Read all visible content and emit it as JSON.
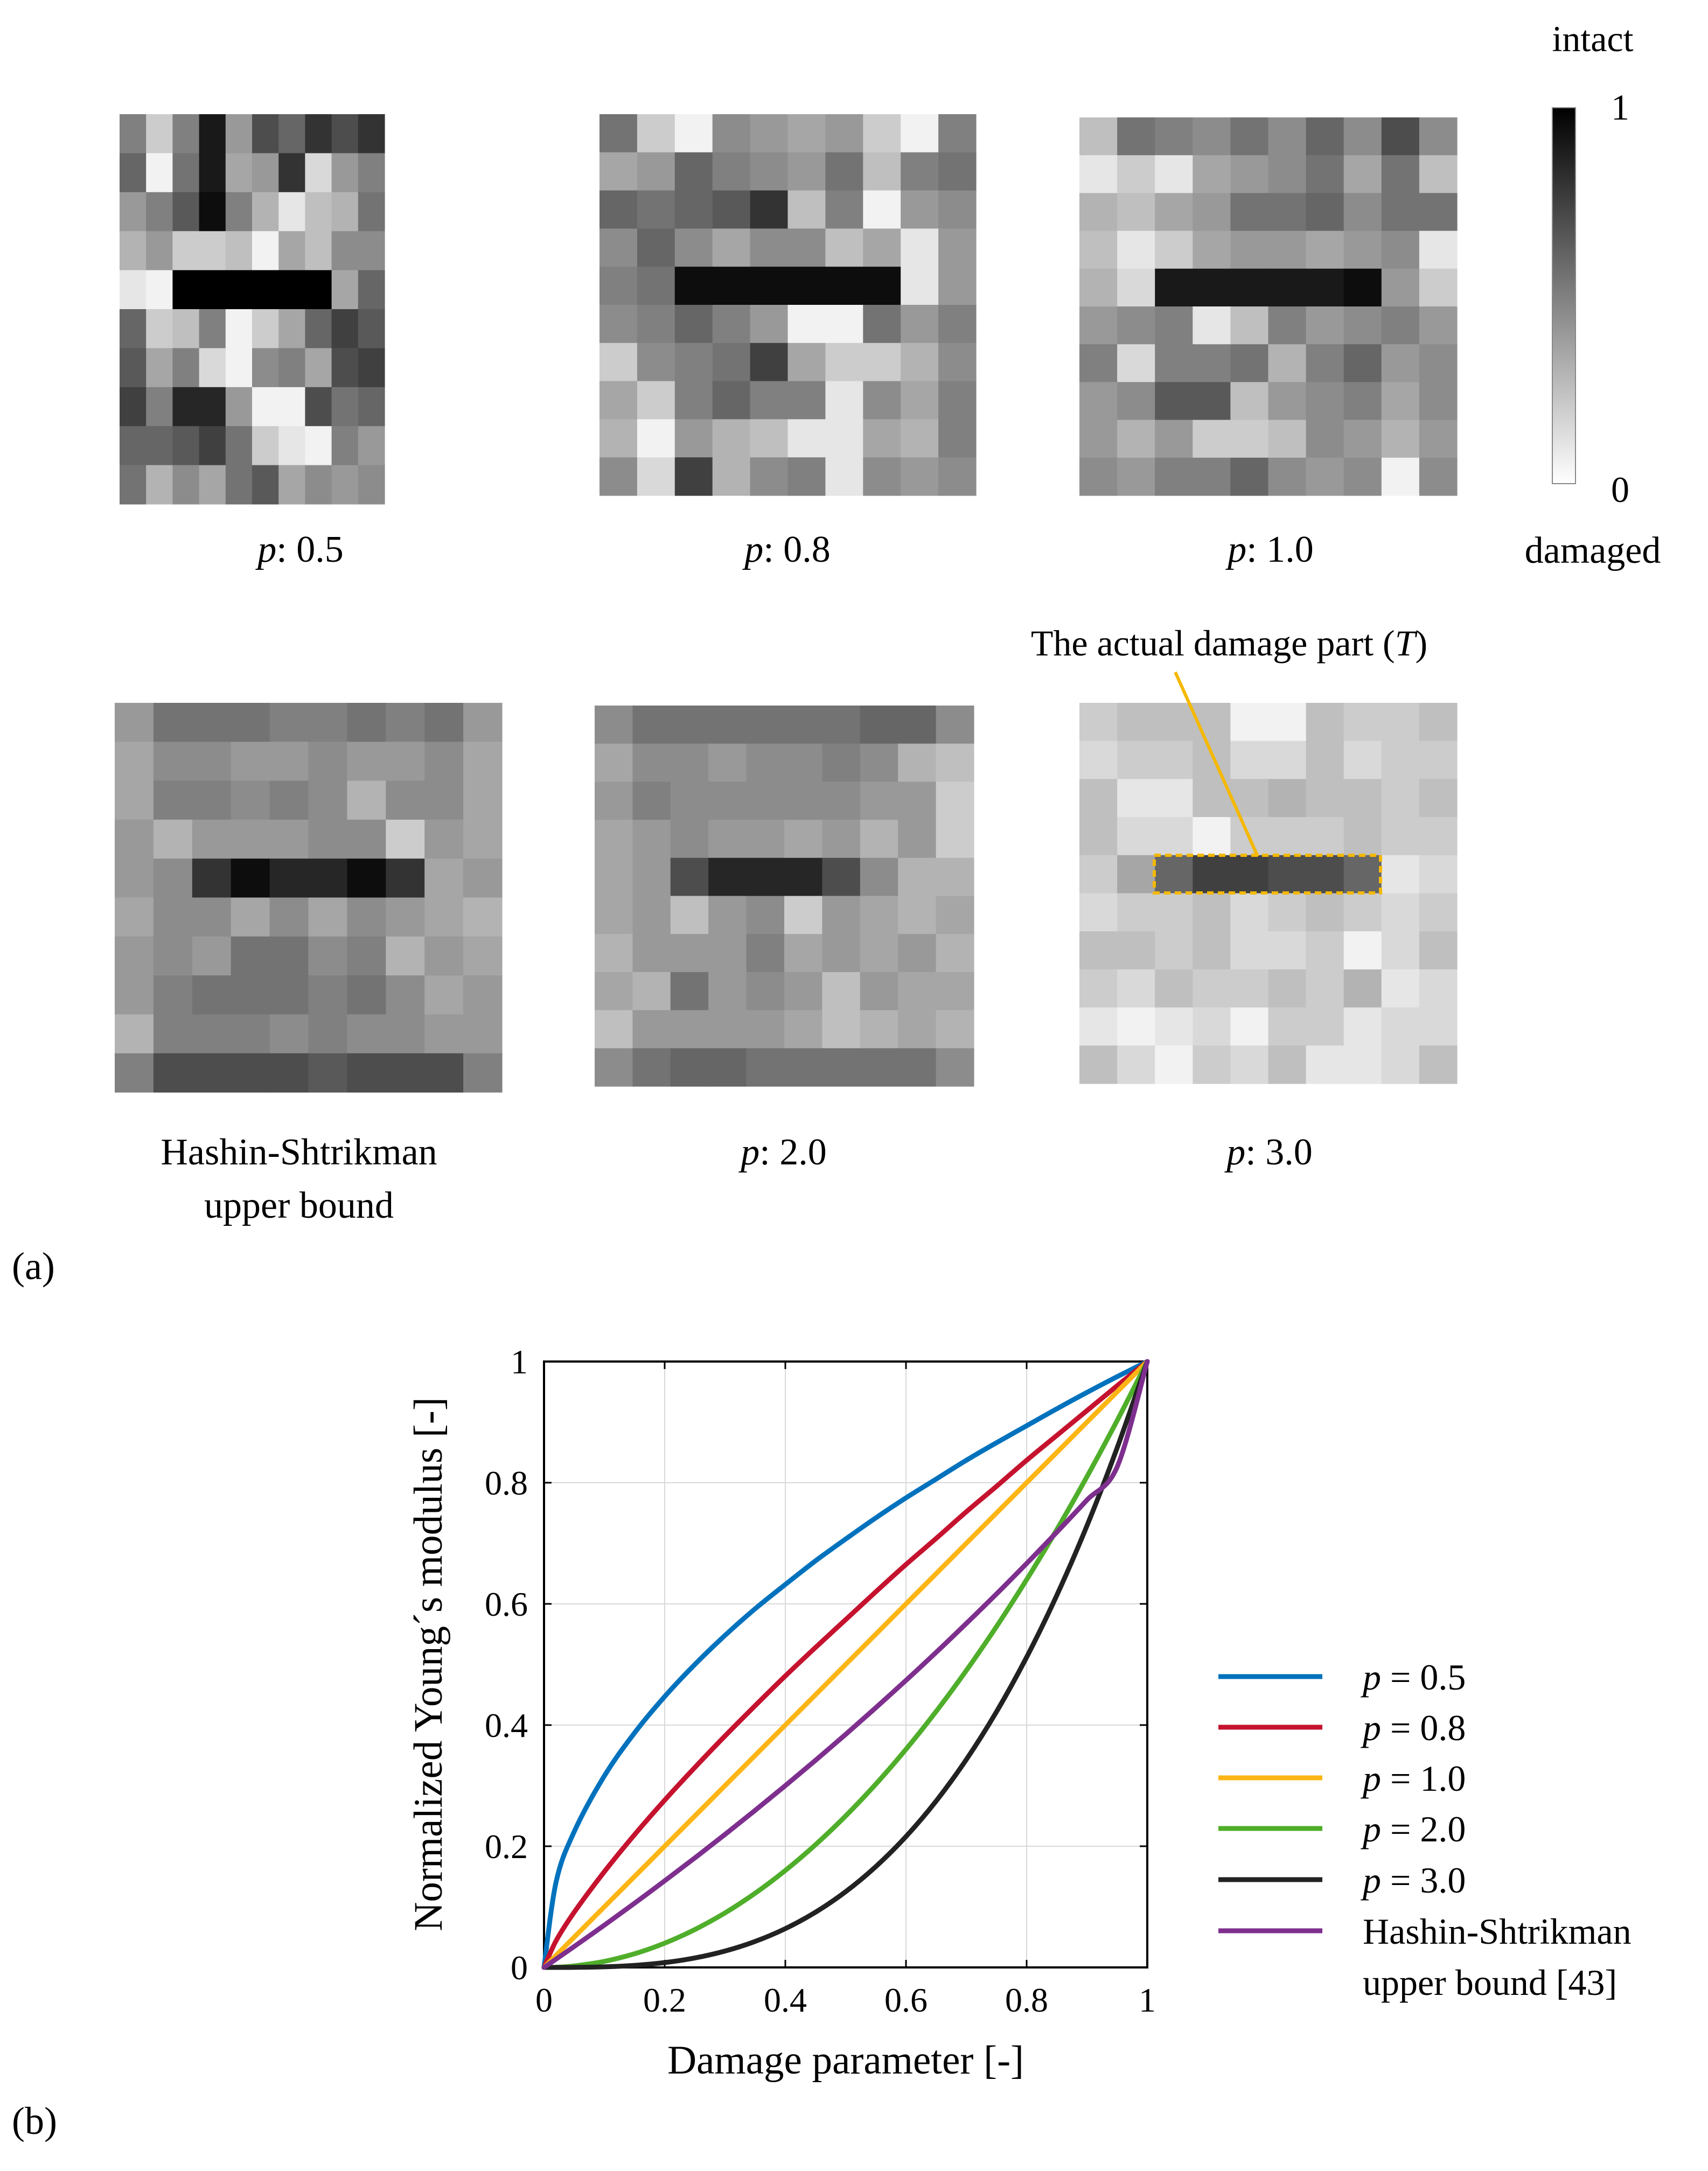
{
  "panel_a": {
    "label": "(a)",
    "maps": [
      {
        "caption_var": "p",
        "caption_value": ": 0.5",
        "grid": [
          [
            0.5,
            0.2,
            0.5,
            0.9,
            0.4,
            0.7,
            0.6,
            0.8,
            0.7,
            0.8
          ],
          [
            0.6,
            0.05,
            0.55,
            0.9,
            0.35,
            0.4,
            0.8,
            0.15,
            0.4,
            0.5
          ],
          [
            0.4,
            0.5,
            0.65,
            0.95,
            0.5,
            0.3,
            0.1,
            0.25,
            0.3,
            0.55
          ],
          [
            0.3,
            0.4,
            0.2,
            0.2,
            0.25,
            0.05,
            0.35,
            0.25,
            0.45,
            0.45
          ],
          [
            0.1,
            0.05,
            1,
            1,
            1,
            1,
            1,
            1,
            0.35,
            0.6
          ],
          [
            0.6,
            0.2,
            0.25,
            0.5,
            0.05,
            0.2,
            0.35,
            0.6,
            0.75,
            0.65
          ],
          [
            0.65,
            0.35,
            0.5,
            0.15,
            0.05,
            0.45,
            0.5,
            0.35,
            0.7,
            0.75
          ],
          [
            0.75,
            0.5,
            0.85,
            0.85,
            0.4,
            0.05,
            0.05,
            0.7,
            0.55,
            0.6
          ],
          [
            0.6,
            0.6,
            0.65,
            0.75,
            0.55,
            0.2,
            0.1,
            0.05,
            0.5,
            0.4
          ],
          [
            0.55,
            0.3,
            0.45,
            0.35,
            0.55,
            0.65,
            0.35,
            0.45,
            0.4,
            0.45
          ]
        ]
      },
      {
        "caption_var": "p",
        "caption_value": ": 0.8",
        "grid": [
          [
            0.55,
            0.2,
            0.05,
            0.45,
            0.4,
            0.35,
            0.4,
            0.2,
            0.05,
            0.5
          ],
          [
            0.35,
            0.4,
            0.6,
            0.5,
            0.45,
            0.4,
            0.55,
            0.25,
            0.5,
            0.55
          ],
          [
            0.6,
            0.55,
            0.6,
            0.65,
            0.8,
            0.25,
            0.5,
            0.05,
            0.4,
            0.45
          ],
          [
            0.45,
            0.6,
            0.45,
            0.35,
            0.45,
            0.45,
            0.25,
            0.35,
            0.1,
            0.4
          ],
          [
            0.5,
            0.55,
            0.95,
            0.95,
            0.95,
            0.95,
            0.95,
            0.95,
            0.1,
            0.4
          ],
          [
            0.45,
            0.5,
            0.6,
            0.5,
            0.4,
            0.05,
            0.05,
            0.55,
            0.4,
            0.5
          ],
          [
            0.2,
            0.45,
            0.5,
            0.55,
            0.75,
            0.35,
            0.2,
            0.2,
            0.3,
            0.45
          ],
          [
            0.35,
            0.2,
            0.5,
            0.6,
            0.5,
            0.5,
            0.1,
            0.45,
            0.35,
            0.5
          ],
          [
            0.3,
            0.05,
            0.4,
            0.3,
            0.25,
            0.1,
            0.1,
            0.35,
            0.3,
            0.5
          ],
          [
            0.45,
            0.15,
            0.75,
            0.3,
            0.45,
            0.5,
            0.1,
            0.45,
            0.4,
            0.45
          ]
        ]
      },
      {
        "caption_var": "p",
        "caption_value": ": 1.0",
        "grid": [
          [
            0.25,
            0.55,
            0.5,
            0.45,
            0.55,
            0.45,
            0.6,
            0.45,
            0.7,
            0.45
          ],
          [
            0.1,
            0.2,
            0.1,
            0.35,
            0.4,
            0.45,
            0.55,
            0.35,
            0.55,
            0.25
          ],
          [
            0.3,
            0.25,
            0.35,
            0.4,
            0.55,
            0.55,
            0.6,
            0.45,
            0.55,
            0.55
          ],
          [
            0.25,
            0.1,
            0.2,
            0.35,
            0.4,
            0.4,
            0.35,
            0.4,
            0.45,
            0.1
          ],
          [
            0.3,
            0.15,
            0.9,
            0.9,
            0.9,
            0.9,
            0.9,
            0.95,
            0.4,
            0.2
          ],
          [
            0.4,
            0.45,
            0.5,
            0.1,
            0.25,
            0.5,
            0.4,
            0.45,
            0.5,
            0.4
          ],
          [
            0.5,
            0.15,
            0.5,
            0.5,
            0.55,
            0.3,
            0.5,
            0.6,
            0.4,
            0.45
          ],
          [
            0.4,
            0.45,
            0.65,
            0.65,
            0.25,
            0.4,
            0.45,
            0.5,
            0.35,
            0.45
          ],
          [
            0.4,
            0.3,
            0.4,
            0.2,
            0.2,
            0.25,
            0.45,
            0.4,
            0.3,
            0.4
          ],
          [
            0.45,
            0.4,
            0.5,
            0.5,
            0.6,
            0.45,
            0.4,
            0.45,
            0.05,
            0.45
          ]
        ]
      },
      {
        "caption_var": "",
        "caption_value": "Hashin-Shtrikman",
        "caption_line2": "upper bound",
        "grid": [
          [
            0.4,
            0.55,
            0.55,
            0.55,
            0.5,
            0.5,
            0.55,
            0.5,
            0.55,
            0.4
          ],
          [
            0.35,
            0.45,
            0.45,
            0.4,
            0.4,
            0.45,
            0.4,
            0.4,
            0.45,
            0.35
          ],
          [
            0.35,
            0.5,
            0.5,
            0.45,
            0.5,
            0.45,
            0.3,
            0.45,
            0.45,
            0.35
          ],
          [
            0.4,
            0.3,
            0.4,
            0.4,
            0.4,
            0.45,
            0.45,
            0.2,
            0.4,
            0.35
          ],
          [
            0.4,
            0.45,
            0.8,
            0.95,
            0.85,
            0.85,
            0.95,
            0.8,
            0.35,
            0.4
          ],
          [
            0.35,
            0.45,
            0.45,
            0.35,
            0.45,
            0.35,
            0.45,
            0.4,
            0.35,
            0.3
          ],
          [
            0.4,
            0.45,
            0.4,
            0.55,
            0.55,
            0.45,
            0.5,
            0.3,
            0.4,
            0.35
          ],
          [
            0.4,
            0.5,
            0.55,
            0.55,
            0.55,
            0.5,
            0.55,
            0.45,
            0.35,
            0.4
          ],
          [
            0.3,
            0.5,
            0.5,
            0.5,
            0.45,
            0.5,
            0.45,
            0.45,
            0.4,
            0.4
          ],
          [
            0.5,
            0.7,
            0.7,
            0.7,
            0.7,
            0.65,
            0.7,
            0.7,
            0.7,
            0.5
          ]
        ]
      },
      {
        "caption_var": "p",
        "caption_value": ": 2.0",
        "grid": [
          [
            0.45,
            0.55,
            0.55,
            0.55,
            0.55,
            0.55,
            0.55,
            0.6,
            0.6,
            0.45
          ],
          [
            0.35,
            0.45,
            0.45,
            0.4,
            0.45,
            0.45,
            0.5,
            0.45,
            0.3,
            0.25
          ],
          [
            0.4,
            0.5,
            0.45,
            0.45,
            0.45,
            0.45,
            0.45,
            0.4,
            0.4,
            0.2
          ],
          [
            0.35,
            0.4,
            0.45,
            0.4,
            0.4,
            0.35,
            0.4,
            0.3,
            0.4,
            0.2
          ],
          [
            0.35,
            0.4,
            0.7,
            0.85,
            0.85,
            0.85,
            0.7,
            0.45,
            0.3,
            0.3
          ],
          [
            0.35,
            0.4,
            0.25,
            0.4,
            0.45,
            0.2,
            0.4,
            0.35,
            0.3,
            0.35
          ],
          [
            0.3,
            0.4,
            0.4,
            0.4,
            0.5,
            0.35,
            0.4,
            0.35,
            0.4,
            0.3
          ],
          [
            0.35,
            0.3,
            0.55,
            0.4,
            0.45,
            0.4,
            0.25,
            0.4,
            0.35,
            0.35
          ],
          [
            0.25,
            0.4,
            0.4,
            0.4,
            0.4,
            0.35,
            0.25,
            0.3,
            0.35,
            0.3
          ],
          [
            0.45,
            0.55,
            0.6,
            0.6,
            0.55,
            0.55,
            0.55,
            0.55,
            0.55,
            0.45
          ]
        ]
      },
      {
        "caption_var": "p",
        "caption_value": ": 3.0",
        "grid": [
          [
            0.2,
            0.25,
            0.25,
            0.25,
            0.05,
            0.05,
            0.25,
            0.2,
            0.2,
            0.25
          ],
          [
            0.15,
            0.2,
            0.2,
            0.25,
            0.15,
            0.15,
            0.25,
            0.15,
            0.2,
            0.2
          ],
          [
            0.25,
            0.1,
            0.1,
            0.25,
            0.25,
            0.3,
            0.25,
            0.25,
            0.2,
            0.25
          ],
          [
            0.25,
            0.15,
            0.15,
            0.05,
            0.2,
            0.2,
            0.2,
            0.25,
            0.2,
            0.2
          ],
          [
            0.2,
            0.35,
            0.6,
            0.75,
            0.75,
            0.7,
            0.7,
            0.6,
            0.1,
            0.15
          ],
          [
            0.15,
            0.2,
            0.2,
            0.25,
            0.15,
            0.2,
            0.25,
            0.2,
            0.15,
            0.2
          ],
          [
            0.25,
            0.25,
            0.2,
            0.25,
            0.15,
            0.15,
            0.2,
            0.05,
            0.15,
            0.25
          ],
          [
            0.2,
            0.15,
            0.25,
            0.2,
            0.2,
            0.25,
            0.2,
            0.3,
            0.1,
            0.15
          ],
          [
            0.1,
            0.05,
            0.1,
            0.15,
            0.05,
            0.2,
            0.2,
            0.1,
            0.15,
            0.15
          ],
          [
            0.25,
            0.15,
            0.05,
            0.2,
            0.15,
            0.25,
            0.1,
            0.1,
            0.15,
            0.25
          ]
        ]
      }
    ],
    "colorbar": {
      "top_label": "intact",
      "max_tick": "1",
      "min_tick": "0",
      "bottom_label": "damaged"
    },
    "annotation": {
      "text_main": "The actual damage part (",
      "text_symbol": "T",
      "text_close": ")",
      "line_color": "#f5b800"
    }
  },
  "panel_b": {
    "label": "(b)",
    "legend_var": "p",
    "colors": {
      "p05": "#0072bd",
      "p08": "#c5122e",
      "p10": "#fdb515",
      "p20": "#4fae2a",
      "p30": "#222222",
      "hs": "#7e2f8e"
    }
  },
  "chart_data": {
    "type": "line",
    "title": "",
    "xlabel": "Damage parameter [-]",
    "ylabel": "Normalized Young´s modulus [-]",
    "xlim": [
      0,
      1
    ],
    "ylim": [
      0,
      1
    ],
    "xticks": [
      0,
      0.2,
      0.4,
      0.6,
      0.8,
      1
    ],
    "yticks": [
      0,
      0.2,
      0.4,
      0.6,
      0.8,
      1
    ],
    "xtick_labels": [
      "0",
      "0.2",
      "0.4",
      "0.6",
      "0.8",
      "1"
    ],
    "ytick_labels": [
      "0",
      "0.2",
      "0.4",
      "0.6",
      "0.8",
      "1"
    ],
    "grid": true,
    "legend_position": "right",
    "x": [
      0,
      0.02,
      0.05,
      0.1,
      0.15,
      0.2,
      0.25,
      0.3,
      0.35,
      0.4,
      0.45,
      0.5,
      0.55,
      0.6,
      0.65,
      0.7,
      0.75,
      0.8,
      0.85,
      0.9,
      0.95,
      1
    ],
    "series": [
      {
        "name": "p = 0.5",
        "color": "#0072bd",
        "values": [
          0,
          0.141,
          0.224,
          0.316,
          0.387,
          0.447,
          0.5,
          0.548,
          0.592,
          0.632,
          0.671,
          0.707,
          0.742,
          0.775,
          0.806,
          0.837,
          0.866,
          0.894,
          0.922,
          0.949,
          0.975,
          1
        ]
      },
      {
        "name": "p = 0.8",
        "color": "#c5122e",
        "values": [
          0,
          0.044,
          0.091,
          0.158,
          0.219,
          0.276,
          0.33,
          0.382,
          0.432,
          0.481,
          0.528,
          0.574,
          0.62,
          0.665,
          0.708,
          0.752,
          0.794,
          0.837,
          0.878,
          0.919,
          0.96,
          1
        ]
      },
      {
        "name": "p = 1.0",
        "color": "#fdb515",
        "values": [
          0,
          0.02,
          0.05,
          0.1,
          0.15,
          0.2,
          0.25,
          0.3,
          0.35,
          0.4,
          0.45,
          0.5,
          0.55,
          0.6,
          0.65,
          0.7,
          0.75,
          0.8,
          0.85,
          0.9,
          0.95,
          1
        ]
      },
      {
        "name": "p = 2.0",
        "color": "#4fae2a",
        "values": [
          0,
          0.0004,
          0.0025,
          0.01,
          0.0225,
          0.04,
          0.0625,
          0.09,
          0.1225,
          0.16,
          0.2025,
          0.25,
          0.3025,
          0.36,
          0.4225,
          0.49,
          0.5625,
          0.64,
          0.7225,
          0.81,
          0.9025,
          1
        ]
      },
      {
        "name": "p = 3.0",
        "color": "#222222",
        "values": [
          0,
          0,
          0.0001,
          0.001,
          0.0034,
          0.008,
          0.0156,
          0.027,
          0.0429,
          0.064,
          0.0911,
          0.125,
          0.1664,
          0.216,
          0.2746,
          0.343,
          0.4219,
          0.512,
          0.6141,
          0.729,
          0.8574,
          1
        ]
      },
      {
        "name": "Hashin-Shtrikman upper bound [43]",
        "color": "#7e2f8e",
        "values": [
          0,
          0.0137,
          0.0345,
          0.0698,
          0.1059,
          0.1429,
          0.1807,
          0.2195,
          0.2593,
          0.3,
          0.3418,
          0.3846,
          0.4286,
          0.4737,
          0.52,
          0.5676,
          0.6164,
          0.6667,
          0.7183,
          0.7714,
          0.826,
          1
        ]
      }
    ]
  },
  "legend": {
    "items": [
      {
        "var": "p",
        "value": " = 0.5",
        "color": "#0072bd"
      },
      {
        "var": "p",
        "value": " = 0.8",
        "color": "#c5122e"
      },
      {
        "var": "p",
        "value": " = 1.0",
        "color": "#fdb515"
      },
      {
        "var": "p",
        "value": " = 2.0",
        "color": "#4fae2a"
      },
      {
        "var": "p",
        "value": " = 3.0",
        "color": "#222222"
      },
      {
        "var": "",
        "value": "Hashin-Shtrikman",
        "value_line2": "upper bound [43]",
        "color": "#7e2f8e"
      }
    ]
  }
}
